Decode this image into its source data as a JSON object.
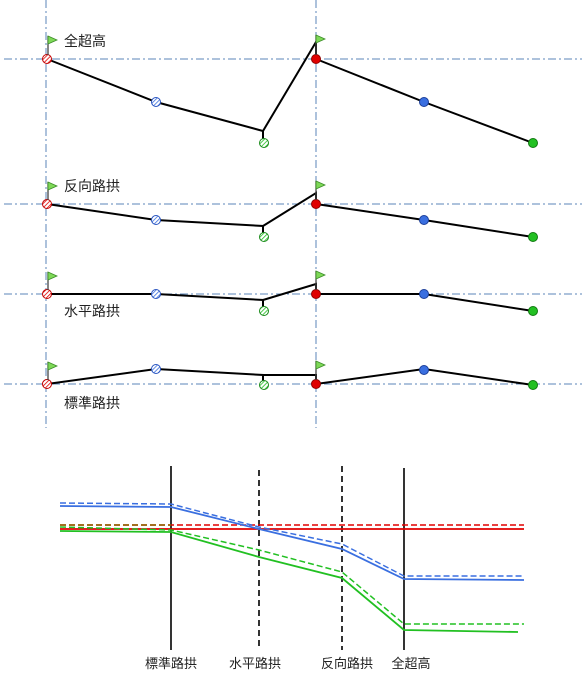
{
  "diagram": {
    "rows": [
      {
        "label": "全超高"
      },
      {
        "label": "反向路拱"
      },
      {
        "label": "水平路拱"
      },
      {
        "label": "標準路拱"
      }
    ],
    "bottom_axis_labels": [
      "標準路拱",
      "水平路拱",
      "反向路拱",
      "全超高"
    ],
    "colors": {
      "guide": "#5b86b8",
      "profile": "#000000",
      "red": "#e00000",
      "blue": "#3a6fe0",
      "green": "#22c022",
      "flag": "#7ed957"
    }
  }
}
